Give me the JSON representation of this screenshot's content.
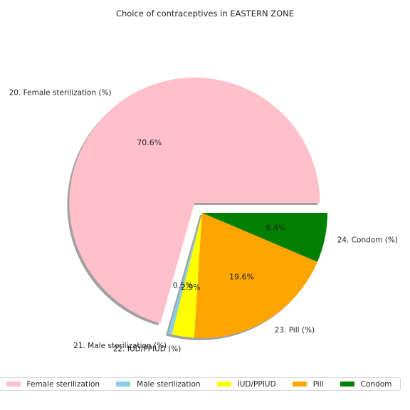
{
  "chart_data": {
    "type": "pie",
    "title": "Choice of contraceptives in EASTERN ZONE",
    "slices": [
      {
        "label": "20. Female sterilization (%)",
        "legend": "Female sterilization",
        "value": 70.6,
        "pct_label": "70.6%",
        "color": "#ffc0cb",
        "exploded": true
      },
      {
        "label": "21. Male sterilization (%)",
        "legend": "Male sterilization",
        "value": 0.5,
        "pct_label": "0.5%",
        "color": "#87ceeb",
        "exploded": false
      },
      {
        "label": "22. IUD/PPIUD (%)",
        "legend": "IUD/PPIUD",
        "value": 2.9,
        "pct_label": "2.9%",
        "color": "#ffff00",
        "exploded": false
      },
      {
        "label": "23. Pill (%)",
        "legend": "Pill",
        "value": 19.6,
        "pct_label": "19.6%",
        "color": "#ffa500",
        "exploded": false
      },
      {
        "label": "24. Condom (%)",
        "legend": "Condom",
        "value": 6.4,
        "pct_label": "6.4%",
        "color": "#008000",
        "exploded": false
      }
    ],
    "start_angle_deg": 0,
    "direction": "counterclockwise",
    "shadow": true,
    "legend_position": "bottom"
  }
}
